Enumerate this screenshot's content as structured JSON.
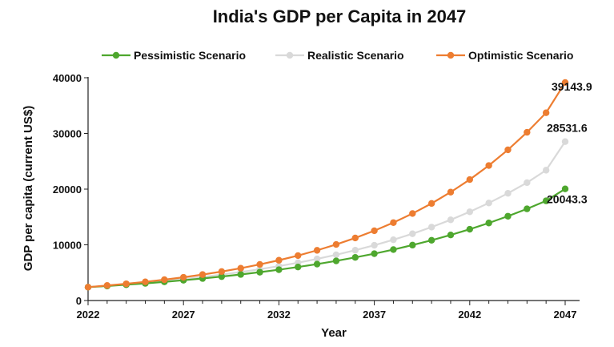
{
  "chart_data": {
    "type": "line",
    "title": "India's GDP per Capita in 2047",
    "xlabel": "Year",
    "ylabel": "GDP per capita (current US$)",
    "x": [
      2022,
      2023,
      2024,
      2025,
      2026,
      2027,
      2028,
      2029,
      2030,
      2031,
      2032,
      2033,
      2034,
      2035,
      2036,
      2037,
      2038,
      2039,
      2040,
      2041,
      2042,
      2043,
      2044,
      2045,
      2046,
      2047
    ],
    "xlim": [
      2022,
      2047
    ],
    "ylim": [
      0,
      40000
    ],
    "x_ticks": [
      2022,
      2027,
      2032,
      2037,
      2042,
      2047
    ],
    "y_ticks": [
      0,
      10000,
      20000,
      30000,
      40000
    ],
    "grid": false,
    "legend_position": "top",
    "series": [
      {
        "name": "Pessimistic Scenario",
        "color": "#4ea72e",
        "end_label": "20043.3",
        "values": [
          2400,
          2600,
          2830,
          3080,
          3350,
          3640,
          3960,
          4300,
          4680,
          5090,
          5530,
          6020,
          6540,
          7110,
          7740,
          8410,
          9150,
          9950,
          10820,
          11770,
          12800,
          13920,
          15140,
          16460,
          17900,
          20043.3
        ]
      },
      {
        "name": "Realistic Scenario",
        "color": "#d9d9d9",
        "end_label": "28531.6",
        "values": [
          2400,
          2640,
          2900,
          3190,
          3500,
          3850,
          4230,
          4650,
          5110,
          5620,
          6180,
          6790,
          7470,
          8210,
          9030,
          9920,
          10910,
          11990,
          13180,
          14490,
          15930,
          17510,
          19250,
          21160,
          23400,
          28531.6
        ]
      },
      {
        "name": "Optimistic Scenario",
        "color": "#ed7d31",
        "end_label": "39143.9",
        "values": [
          2400,
          2700,
          3000,
          3350,
          3740,
          4170,
          4660,
          5200,
          5800,
          6480,
          7230,
          8070,
          9010,
          10060,
          11230,
          12530,
          13990,
          15620,
          17430,
          19460,
          21720,
          24240,
          27060,
          30200,
          33710,
          39143.9
        ]
      }
    ]
  }
}
